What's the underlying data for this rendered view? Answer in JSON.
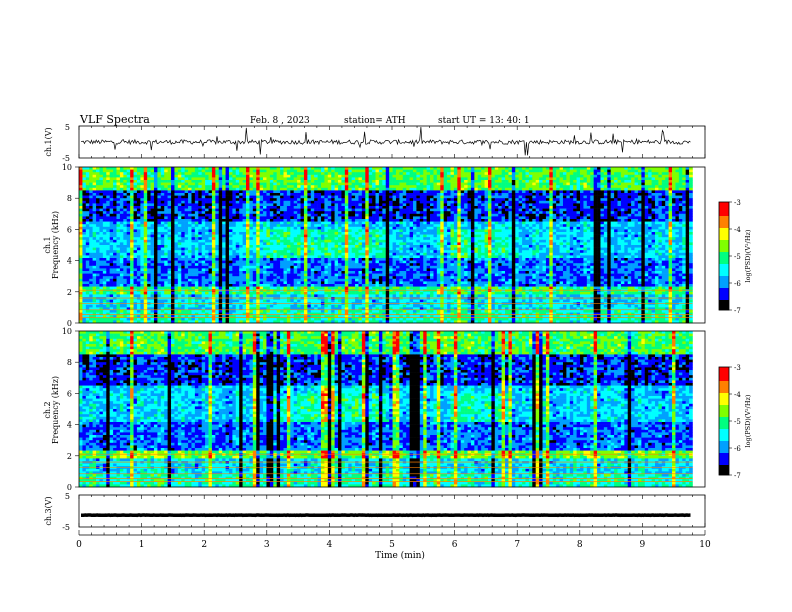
{
  "header": {
    "title": "VLF  Spectra",
    "date": "Feb. 8  , 2023",
    "station": "station= ATH",
    "start": "start  UT  =   13: 40: 1"
  },
  "colors": {
    "spec_palette": [
      "#000000",
      "#0000ff",
      "#00a0ff",
      "#00ffff",
      "#00ff80",
      "#80ff00",
      "#ffff00",
      "#ff8000",
      "#ff0000",
      "#ffc0c0",
      "#ffffff"
    ]
  },
  "chart_data": [
    {
      "type": "line",
      "name": "ch1-waveform",
      "ylabel": "ch.1(V)",
      "ylim": [
        -5,
        5
      ],
      "yticks": [
        "5",
        "-5"
      ],
      "xlim": [
        0,
        10
      ],
      "level": 0.0,
      "noise": 0.7,
      "spike_max": 4.6
    },
    {
      "type": "heatmap",
      "name": "ch1-spectrogram",
      "ylabel": "ch.1",
      "ylabel2": "Frequency  (kHz)",
      "ylim": [
        0,
        10
      ],
      "yticks": [
        "0",
        "2",
        "4",
        "6",
        "8",
        "10"
      ],
      "xlim": [
        0,
        9.8
      ],
      "colorbar": {
        "range": [
          -7,
          -3
        ],
        "ticks": [
          "-3",
          "-4",
          "-5",
          "-6",
          "-7"
        ],
        "label": "log(PSD)(V²/Hz)"
      }
    },
    {
      "type": "heatmap",
      "name": "ch2-spectrogram",
      "ylabel": "ch.2",
      "ylabel2": "Frequency  (kHz)",
      "ylim": [
        0,
        10
      ],
      "yticks": [
        "0",
        "2",
        "4",
        "6",
        "8",
        "10"
      ],
      "xlim": [
        0,
        9.8
      ],
      "colorbar": {
        "range": [
          -7,
          -3
        ],
        "ticks": [
          "-3",
          "-4",
          "-5",
          "-6",
          "-7"
        ],
        "label": "log(PSD)(V²/Hz)"
      }
    },
    {
      "type": "line",
      "name": "ch3-waveform",
      "ylabel": "ch.3(V)",
      "ylim": [
        -5,
        5
      ],
      "yticks": [
        "5",
        "-5"
      ],
      "xlim": [
        0,
        10
      ],
      "level": -1.3,
      "noise": 0.05,
      "spike_max": 0
    }
  ],
  "xaxis": {
    "label": "Time  (min)",
    "ticks": [
      "0",
      "1",
      "2",
      "3",
      "4",
      "5",
      "6",
      "7",
      "8",
      "9",
      "10"
    ],
    "range": [
      0,
      10
    ]
  }
}
